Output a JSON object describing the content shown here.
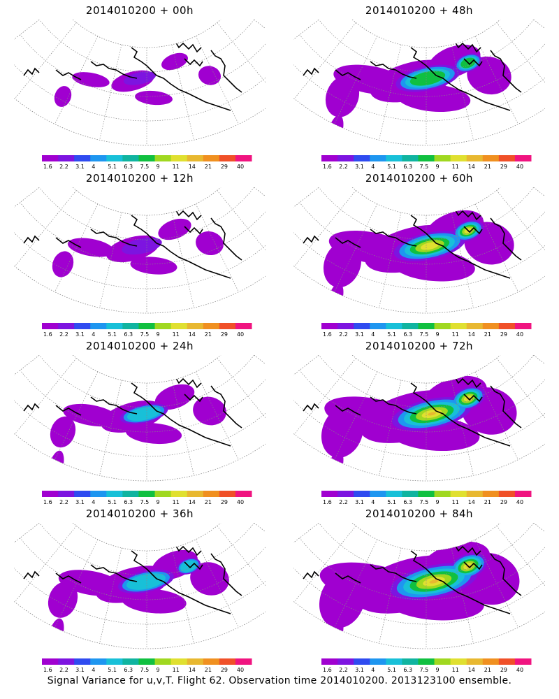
{
  "colorbar": {
    "labels": [
      "1.6",
      "2.2",
      "3.1",
      "4",
      "5.1",
      "6.3",
      "7.5",
      "9",
      "11",
      "14",
      "21",
      "29",
      "40"
    ],
    "colors": [
      "#a000d0",
      "#7d14e0",
      "#2f4bf0",
      "#1e96f0",
      "#18c0d8",
      "#10b4a0",
      "#10c040",
      "#a0d820",
      "#e0e030",
      "#e8b830",
      "#f09020",
      "#f05028",
      "#f01480"
    ]
  },
  "panels": [
    {
      "title": "2014010200 + 00h",
      "level": 0
    },
    {
      "title": "2014010200 + 48h",
      "level": 4
    },
    {
      "title": "2014010200 + 12h",
      "level": 1
    },
    {
      "title": "2014010200 + 60h",
      "level": 5
    },
    {
      "title": "2014010200 + 24h",
      "level": 2
    },
    {
      "title": "2014010200 + 72h",
      "level": 6
    },
    {
      "title": "2014010200 + 36h",
      "level": 3
    },
    {
      "title": "2014010200 + 84h",
      "level": 7
    }
  ],
  "footer": "Signal Variance for u,v,T. Flight 62. Observation time 2014010200. 2013123100 ensemble."
}
